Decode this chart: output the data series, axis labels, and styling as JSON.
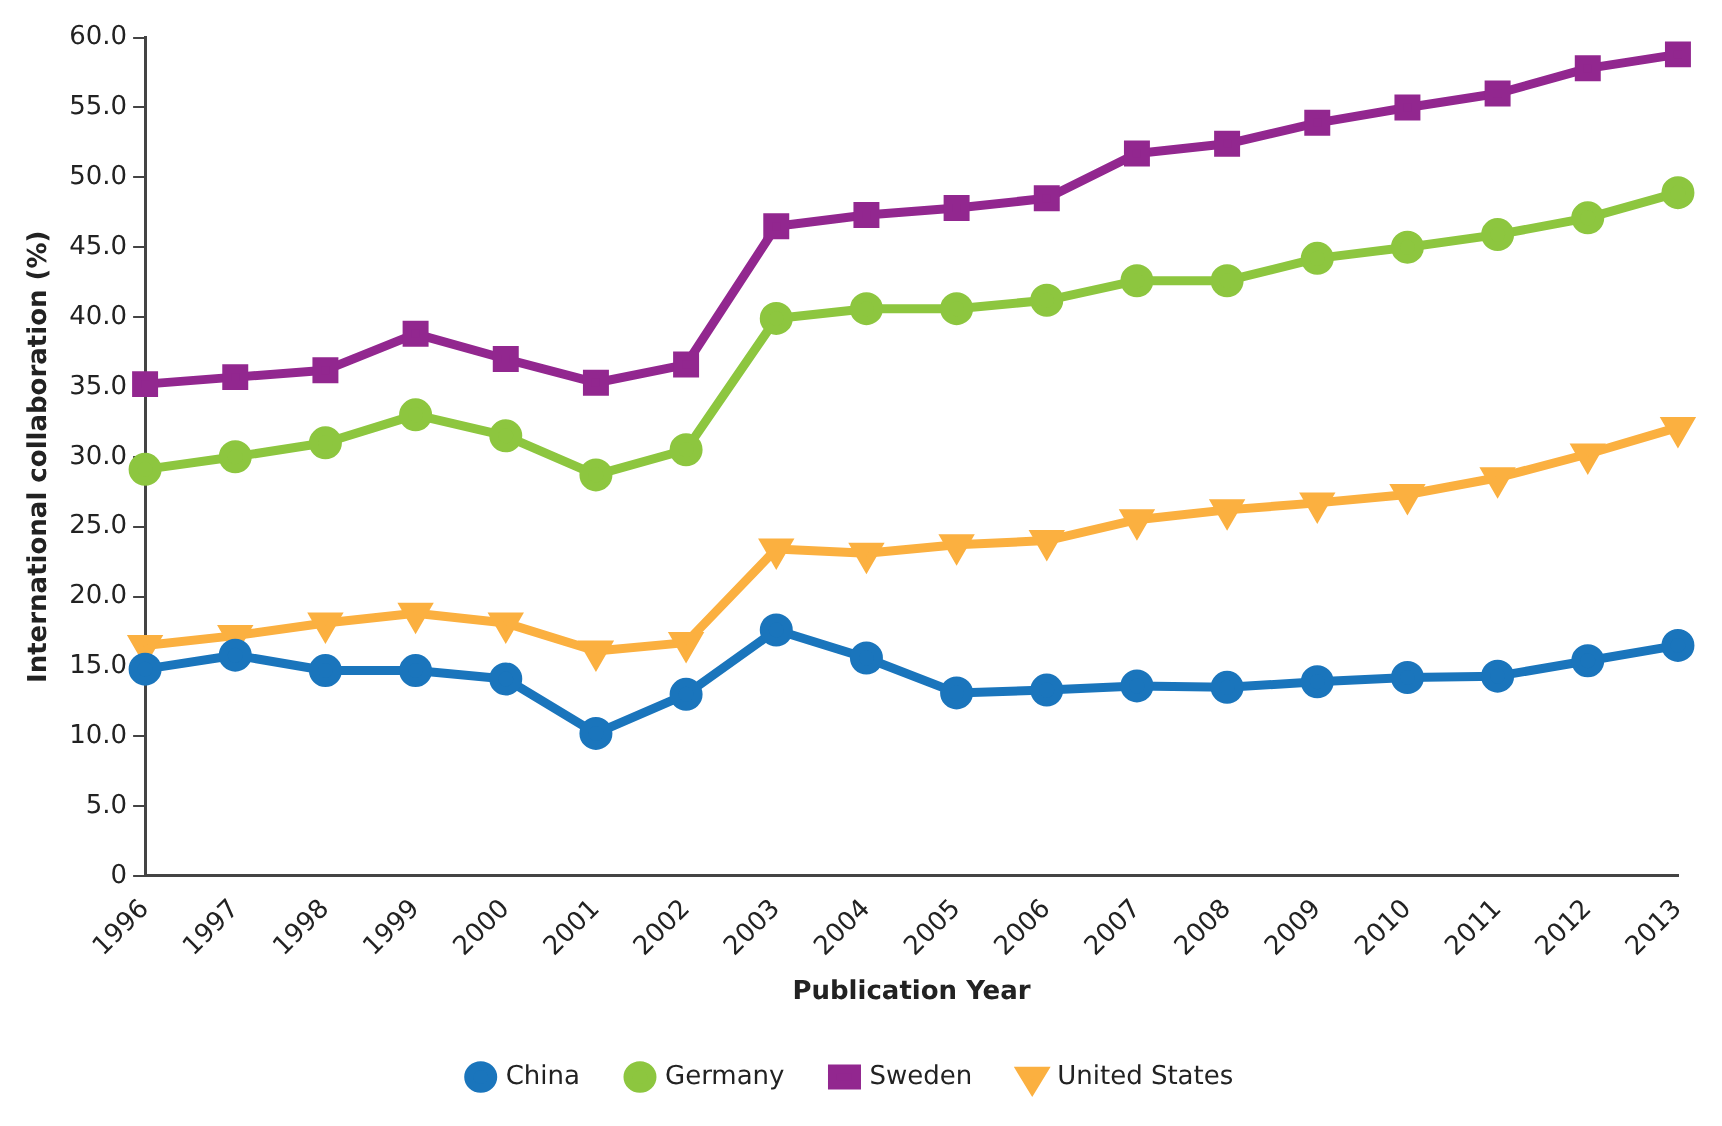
{
  "chart_data": {
    "type": "line",
    "xlabel": "Publication Year",
    "ylabel": "International collaboration (%)",
    "categories": [
      "1996",
      "1997",
      "1998",
      "1999",
      "2000",
      "2001",
      "2002",
      "2003",
      "2004",
      "2005",
      "2006",
      "2007",
      "2008",
      "2009",
      "2010",
      "2011",
      "2012",
      "2013"
    ],
    "series": [
      {
        "name": "China",
        "color": "#1a75bc",
        "marker": "circle",
        "values": [
          14.8,
          15.8,
          14.7,
          14.7,
          14.1,
          10.2,
          13.0,
          17.6,
          15.6,
          13.1,
          13.3,
          13.6,
          13.5,
          13.9,
          14.2,
          14.3,
          15.4,
          16.5
        ]
      },
      {
        "name": "Germany",
        "color": "#8dc63f",
        "marker": "circle",
        "values": [
          29.1,
          30.0,
          31.0,
          33.0,
          31.5,
          28.7,
          30.5,
          39.9,
          40.6,
          40.6,
          41.2,
          42.6,
          42.6,
          44.2,
          45.0,
          45.9,
          47.1,
          48.9
        ]
      },
      {
        "name": "Sweden",
        "color": "#92278f",
        "marker": "square",
        "values": [
          35.2,
          35.7,
          36.2,
          38.8,
          37.0,
          35.3,
          36.6,
          46.5,
          47.3,
          47.8,
          48.5,
          51.7,
          52.4,
          53.9,
          55.0,
          56.0,
          57.8,
          58.8
        ]
      },
      {
        "name": "United States",
        "color": "#fbb040",
        "marker": "triangle",
        "values": [
          16.5,
          17.2,
          18.1,
          18.8,
          18.1,
          16.1,
          16.7,
          23.4,
          23.1,
          23.7,
          24.0,
          25.5,
          26.2,
          26.7,
          27.3,
          28.5,
          30.2,
          32.1
        ]
      }
    ],
    "ylim": [
      0,
      60
    ],
    "yticks": [
      {
        "value": 0,
        "label": "0"
      },
      {
        "value": 5,
        "label": "5.0"
      },
      {
        "value": 10,
        "label": "10.0"
      },
      {
        "value": 15,
        "label": "15.0"
      },
      {
        "value": 20,
        "label": "20.0"
      },
      {
        "value": 25,
        "label": "25.0"
      },
      {
        "value": 30,
        "label": "30.0"
      },
      {
        "value": 35,
        "label": "35.0"
      },
      {
        "value": 40,
        "label": "40.0"
      },
      {
        "value": 45,
        "label": "45.0"
      },
      {
        "value": 50,
        "label": "50.0"
      },
      {
        "value": 55,
        "label": "55.0"
      },
      {
        "value": 60,
        "label": "60.0"
      }
    ],
    "grid": false,
    "legend": "bottom",
    "line_style": "solid"
  }
}
